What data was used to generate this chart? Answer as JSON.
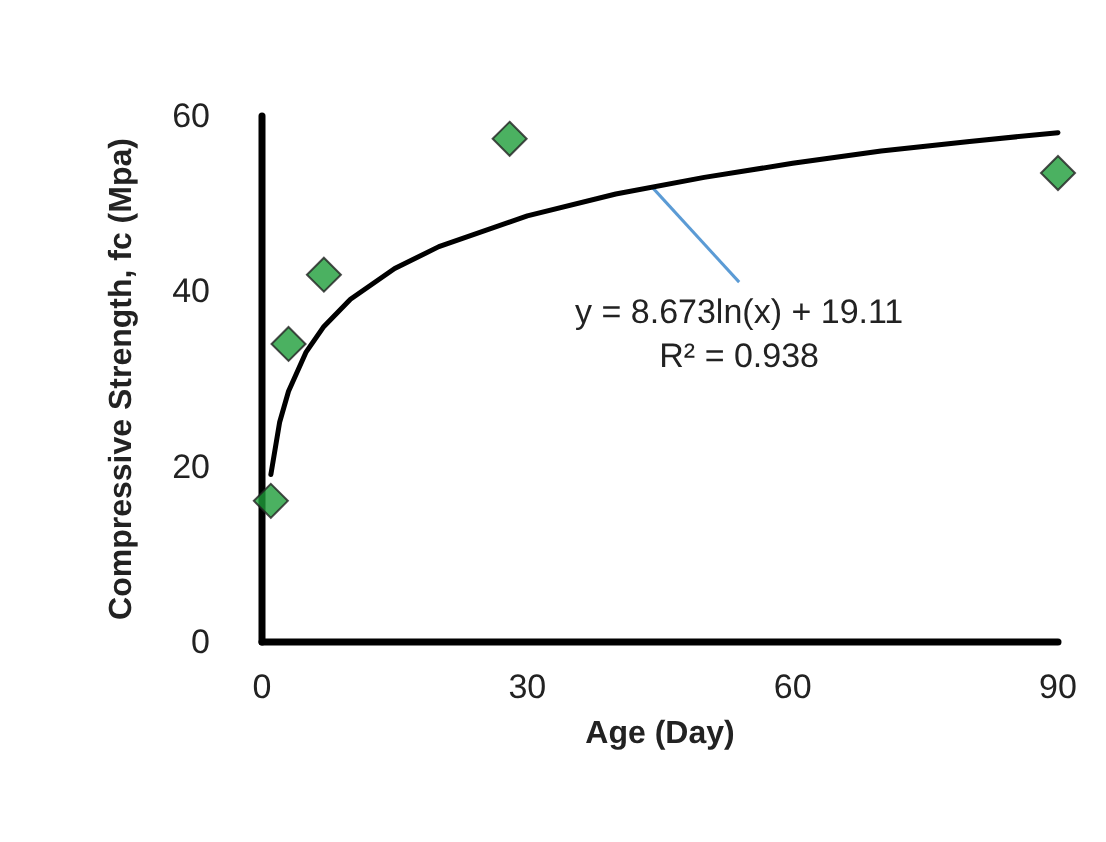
{
  "chart_data": {
    "type": "scatter",
    "xlabel": "Age (Day)",
    "ylabel": "Compressive Strength, fc (Mpa)",
    "xlim": [
      0,
      90
    ],
    "xticks": [
      0,
      30,
      60,
      90
    ],
    "ylim": [
      0,
      60
    ],
    "yticks": [
      0,
      20,
      40,
      60
    ],
    "grid": false,
    "marker": "diamond",
    "series": [
      {
        "color": "#1e9e3a",
        "x": [
          1,
          3,
          7,
          28,
          90
        ],
        "values": [
          16.1,
          34.0,
          41.9,
          57.4,
          53.5
        ]
      },
      {
        "type": "line",
        "color": "#000000",
        "marker": "none",
        "line_style": "solid",
        "x": [
          1,
          2,
          3,
          5,
          7,
          10,
          15,
          20,
          30,
          40,
          50,
          60,
          70,
          80,
          90
        ],
        "values": [
          19.1,
          25.1,
          28.6,
          33.1,
          36.0,
          39.1,
          42.6,
          45.1,
          48.6,
          51.1,
          53.0,
          54.6,
          56.0,
          57.1,
          58.1
        ]
      }
    ],
    "annotations": [
      {
        "text": "y = 8.673ln(x) + 19.11\nR² = 0.938",
        "x": 44,
        "y": 52
      }
    ]
  }
}
